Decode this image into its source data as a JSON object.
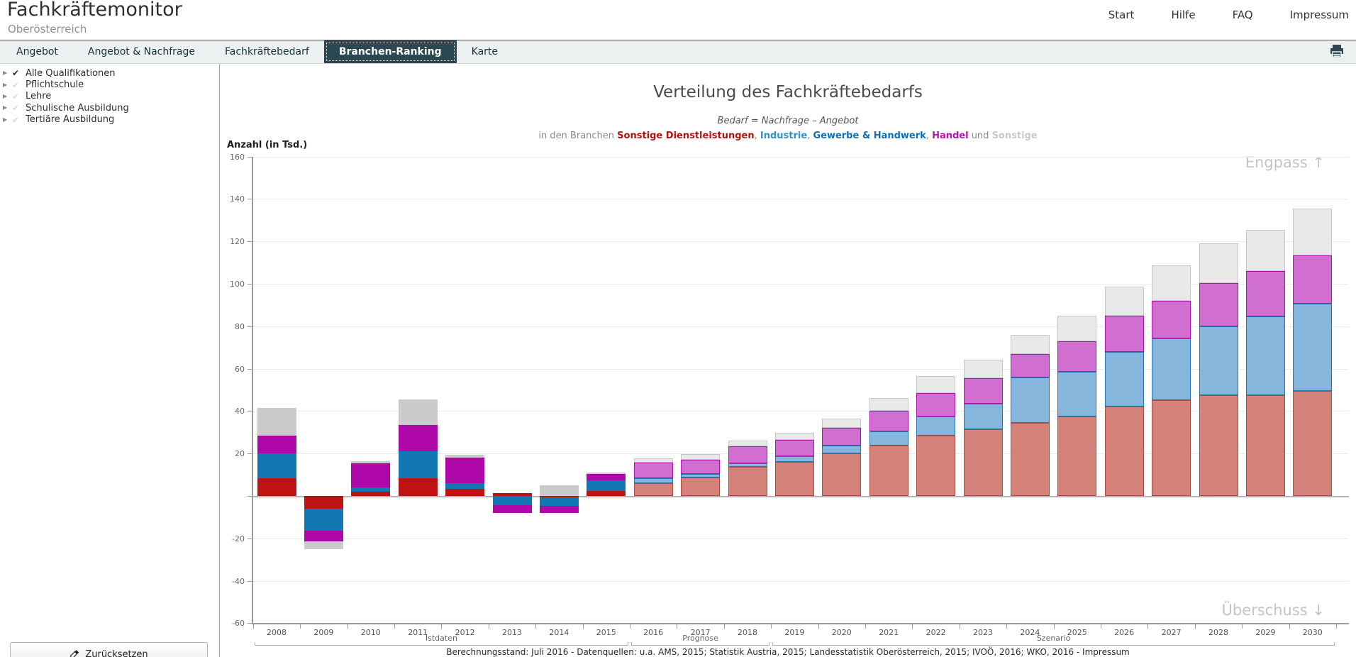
{
  "header": {
    "title": "Fachkräftemonitor",
    "subtitle": "Oberösterreich",
    "links": [
      "Start",
      "Hilfe",
      "FAQ",
      "Impressum"
    ]
  },
  "tabs": {
    "items": [
      "Angebot",
      "Angebot & Nachfrage",
      "Fachkräftebedarf",
      "Branchen-Ranking",
      "Karte"
    ],
    "active": "Branchen-Ranking"
  },
  "sidebar": {
    "items": [
      {
        "label": "Alle Qualifikationen",
        "checked": true
      },
      {
        "label": "Pflichtschule",
        "checked": false
      },
      {
        "label": "Lehre",
        "checked": false
      },
      {
        "label": "Schulische Ausbildung",
        "checked": false
      },
      {
        "label": "Tertiäre Ausbildung",
        "checked": false
      }
    ],
    "reset_label": "Zurücksetzen"
  },
  "chart": {
    "title": "Verteilung des Fachkräftebedarfs",
    "subtitle": "Bedarf = Nachfrage – Angebot",
    "legend": {
      "prefix": "in den Branchen",
      "conjunction": "und",
      "branches": [
        {
          "label": "Sonstige Dienstleistungen",
          "color": "#b41212"
        },
        {
          "label": "Industrie",
          "color": "#2f94cd"
        },
        {
          "label": "Gewerbe & Handwerk",
          "color": "#0d6fb8"
        },
        {
          "label": "Handel",
          "color": "#bf10b5"
        },
        {
          "label": "Sonstige",
          "color": "#c9c9c9"
        }
      ]
    },
    "y_axis_title": "Anzahl (in Tsd.)",
    "engpass_label": "Engpass",
    "engpass_arrow": "↑",
    "ueberschuss_label": "Überschuss",
    "ueberschuss_arrow": "↓",
    "footer": "Berechnungsstand: Juli 2016 - Datenquellen: u.a. AMS, 2015; Statistik Austria, 2015; Landesstatistik Oberösterreich, 2015; IVOÖ, 2016; WKO, 2016 - Impressum"
  },
  "chart_data": {
    "type": "bar",
    "stacked": true,
    "title": "Verteilung des Fachkräftebedarfs",
    "ylabel": "Anzahl (in Tsd.)",
    "ylim": [
      -60,
      160
    ],
    "ytick_step": 20,
    "grid": true,
    "categories": [
      "2008",
      "2009",
      "2010",
      "2011",
      "2012",
      "2013",
      "2014",
      "2015",
      "2016",
      "2017",
      "2018",
      "2019",
      "2020",
      "2021",
      "2022",
      "2023",
      "2024",
      "2025",
      "2026",
      "2027",
      "2028",
      "2029",
      "2030"
    ],
    "series": [
      {
        "key": "dienstleistungen",
        "name": "Sonstige Dienstleistungen",
        "values": [
          8.5,
          -6,
          2,
          8.5,
          3.5,
          1.5,
          -0.7,
          2.4,
          6,
          8.7,
          13.8,
          16,
          20,
          23.7,
          28.4,
          31.6,
          34.3,
          37.3,
          42,
          45.2,
          47.5,
          47.5,
          49.5
        ]
      },
      {
        "key": "industrie",
        "name": "Industrie, Gewerbe & Handwerk",
        "values": [
          11.5,
          -10.5,
          2,
          12.5,
          2.5,
          -4.5,
          -4,
          5,
          2.4,
          1.7,
          1.7,
          2.6,
          3.6,
          6.7,
          9.2,
          11.9,
          21.5,
          21.1,
          26,
          29.1,
          32.5,
          37,
          41
        ]
      },
      {
        "key": "handel",
        "name": "Handel",
        "values": [
          8.5,
          -5,
          11.5,
          12.5,
          12,
          -3.5,
          -3.3,
          3,
          7.4,
          6.7,
          8,
          7.7,
          8.6,
          9.6,
          10.9,
          11.9,
          11.2,
          14.6,
          17,
          17.7,
          20.3,
          21.5,
          22.8
        ]
      },
      {
        "key": "sonstige",
        "name": "Sonstige",
        "values": [
          13,
          -3.5,
          1,
          12,
          1.5,
          0,
          5,
          0.6,
          2,
          2.7,
          2.7,
          3.3,
          4.4,
          6.2,
          7.9,
          8.9,
          9,
          12,
          13.7,
          16.6,
          18.8,
          19.4,
          22
        ]
      }
    ],
    "groups": [
      {
        "label": "Istdaten",
        "from": "2008",
        "to": "2015"
      },
      {
        "label": "Prognose",
        "from": "2016",
        "to": "2018"
      },
      {
        "label": "Szenario",
        "from": "2019",
        "to": "2030"
      }
    ],
    "ist_last_year": "2015",
    "palette": {
      "ist": {
        "dienstleistungen": "#bf1313",
        "industrie": "#1377b4",
        "handel": "#b007a8",
        "sonstige": "#cacaca"
      },
      "forecast_fill": {
        "dienstleistungen": "#d5827b",
        "industrie": "#86b6dc",
        "handel": "#d06fd0",
        "sonstige": "#e9e9e9"
      },
      "forecast_border": {
        "dienstleistungen": "#a94a43",
        "industrie": "#2a72ad",
        "handel": "#ad13ad",
        "sonstige": "#c6c6c6"
      }
    },
    "legend_position": "top",
    "annotations": [
      "Engpass ↑",
      "Überschuss ↓"
    ]
  }
}
